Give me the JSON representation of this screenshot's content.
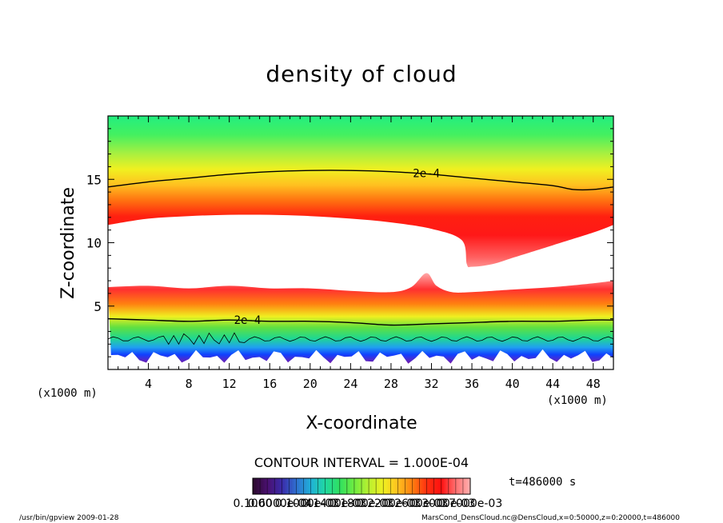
{
  "chart_data": {
    "type": "heatmap",
    "title": "density of cloud",
    "xlabel": "X-coordinate",
    "ylabel": "Z-coordinate",
    "x_unit_left": "(x1000 m)",
    "x_unit_right": "(x1000 m)",
    "xlim": [
      0,
      50
    ],
    "ylim": [
      0,
      20
    ],
    "x_ticks": [
      4,
      8,
      12,
      16,
      20,
      24,
      28,
      32,
      36,
      40,
      44,
      48
    ],
    "y_ticks": [
      5,
      10,
      15
    ],
    "grid": false,
    "contour_interval_text": "CONTOUR INTERVAL = 1.000E-04",
    "time_text": "t=486000 s",
    "contour_labels": [
      {
        "text": "2e-4",
        "x": 31.5,
        "z": 15.5
      },
      {
        "text": "2e-4",
        "x": 13.8,
        "z": 3.9
      }
    ],
    "upper_contour_2e4": {
      "x": [
        0,
        4,
        8,
        12,
        16,
        20,
        24,
        28,
        32,
        36,
        40,
        44,
        46,
        48,
        50
      ],
      "z": [
        14.4,
        14.8,
        15.1,
        15.4,
        15.6,
        15.7,
        15.7,
        15.6,
        15.4,
        15.1,
        14.8,
        14.5,
        14.2,
        14.2,
        14.4
      ]
    },
    "lower_contour_2e4": {
      "x": [
        0,
        4,
        8,
        12,
        16,
        20,
        24,
        28,
        32,
        36,
        40,
        44,
        48,
        50
      ],
      "z": [
        4.0,
        3.9,
        3.8,
        3.9,
        3.8,
        3.8,
        3.7,
        3.5,
        3.6,
        3.7,
        3.8,
        3.8,
        3.9,
        3.9
      ]
    },
    "upper_cloud_bottom": {
      "x": [
        0,
        4,
        8,
        12,
        16,
        20,
        24,
        28,
        32,
        35,
        35.5,
        36,
        38,
        40,
        44,
        48,
        50
      ],
      "z": [
        11.4,
        11.9,
        12.1,
        12.2,
        12.2,
        12.1,
        11.9,
        11.6,
        11.1,
        10.2,
        8.3,
        8.1,
        8.3,
        8.8,
        9.8,
        10.8,
        11.4
      ]
    },
    "lower_cloud_top": {
      "x": [
        0,
        4,
        8,
        12,
        16,
        20,
        24,
        28,
        30,
        31.5,
        32.5,
        34,
        36,
        40,
        44,
        48,
        50
      ],
      "z": [
        6.5,
        6.6,
        6.4,
        6.6,
        6.4,
        6.4,
        6.2,
        6.1,
        6.5,
        7.6,
        6.6,
        6.1,
        6.1,
        6.3,
        6.5,
        6.8,
        7.0
      ]
    },
    "colorbar": {
      "min": "0.1000",
      "max": "0.7000e-03",
      "tick_labels": [
        "0.1000",
        "0.6000e-04",
        "0.1000e-03",
        "0.1400e-03",
        "0.1800e-03",
        "0.2200e-03",
        "0.2600e-03",
        "0.3000e-03",
        "0.7000e-03"
      ],
      "colors": [
        "#2a0a2a",
        "#4b1070",
        "#3a2aa8",
        "#2f6fd0",
        "#20b0d8",
        "#20d8a0",
        "#30e060",
        "#70ec40",
        "#b8f030",
        "#f0f020",
        "#ffc020",
        "#ff8010",
        "#ff3010",
        "#ff1010",
        "#ff7070",
        "#ffb0b0"
      ]
    },
    "field_colors": {
      "top": "#20ee7a",
      "high": "#ffe020",
      "peak": "#ff1818",
      "fade": "#ffb0b0",
      "low_blue": "#1060ff",
      "low_purple": "#6a1aa0"
    }
  },
  "footer": {
    "program": "/usr/bin/gpview  2009-01-28",
    "source": "MarsCond_DensCloud.nc@DensCloud,x=0:50000,z=0:20000,t=486000"
  }
}
